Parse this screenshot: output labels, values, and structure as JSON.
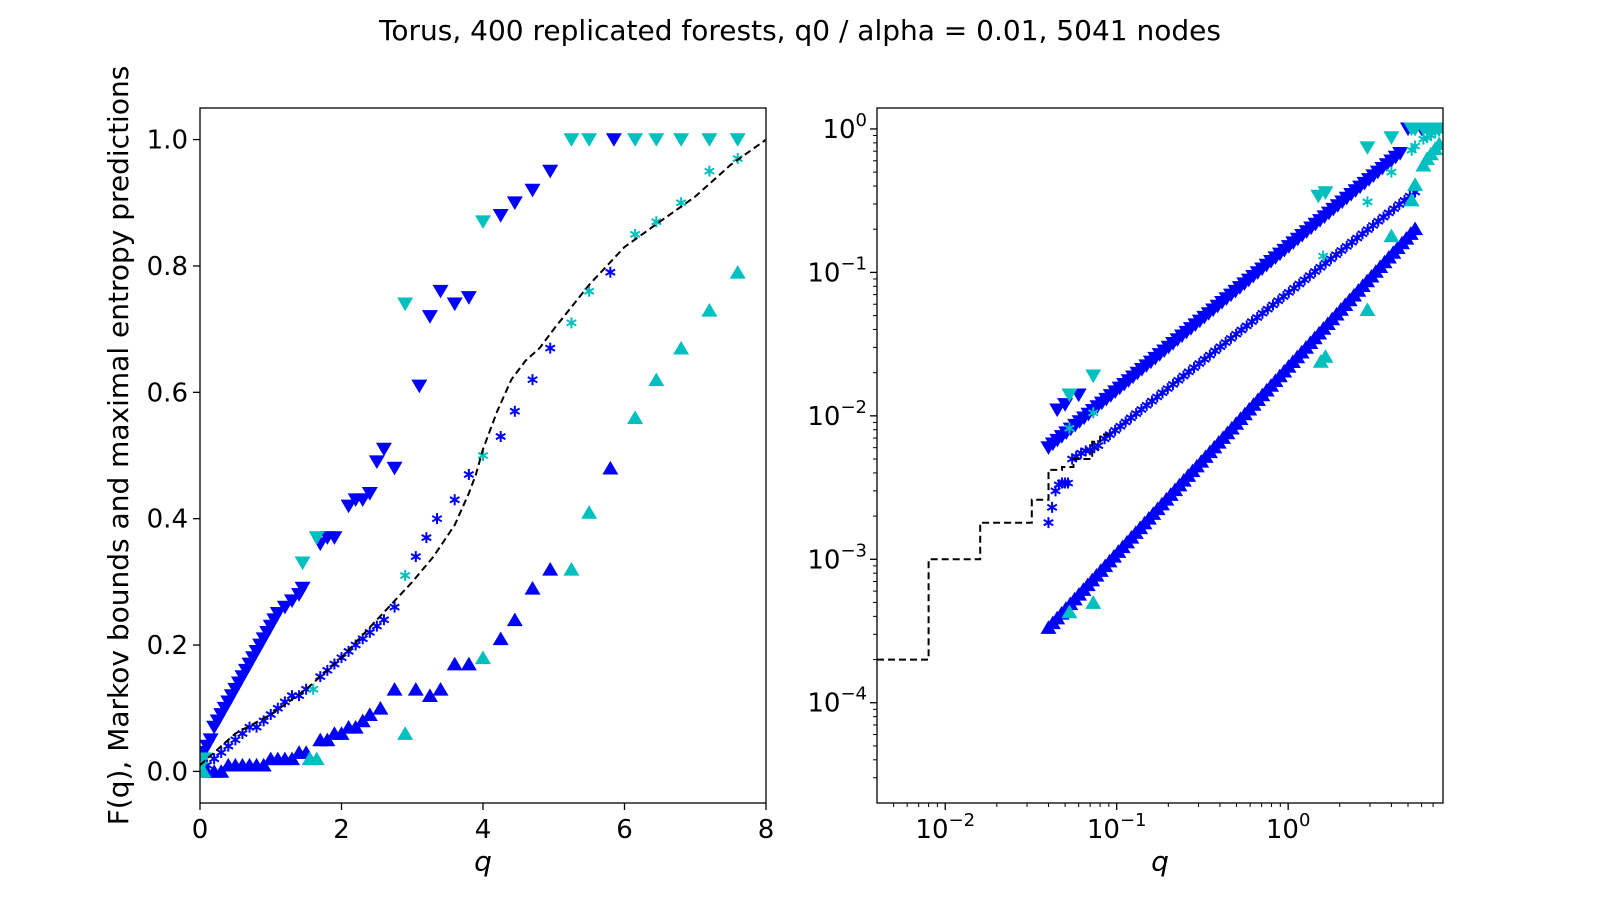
{
  "title": "Torus, 400 replicated forests, q0 / alpha = 0.01, 5041 nodes",
  "colors": {
    "blue": "#0000ff",
    "cyan": "#00bfbf",
    "dashed": "#000000"
  },
  "chart_data": [
    {
      "type": "scatter",
      "xscale": "linear",
      "yscale": "linear",
      "xlim": [
        0,
        8
      ],
      "ylim": [
        -0.05,
        1.05
      ],
      "xticks": [
        0,
        2,
        4,
        6,
        8
      ],
      "xtick_labels": [
        "0",
        "2",
        "4",
        "6",
        "8"
      ],
      "yticks": [
        0.0,
        0.2,
        0.4,
        0.6,
        0.8,
        1.0
      ],
      "ytick_labels": [
        "0.0",
        "0.2",
        "0.4",
        "0.6",
        "0.8",
        "1.0"
      ],
      "xlabel": "q",
      "ylabel": "F(q), Markov bounds and maximal entropy predictions",
      "series": [
        {
          "marker": "triangle-down",
          "color": "blue",
          "x": [
            0.05,
            0.1,
            0.15,
            0.2,
            0.25,
            0.3,
            0.35,
            0.4,
            0.45,
            0.5,
            0.55,
            0.6,
            0.65,
            0.7,
            0.75,
            0.8,
            0.85,
            0.9,
            0.95,
            1.0,
            1.05,
            1.1,
            1.2,
            1.3,
            1.4,
            1.45,
            1.7,
            1.8,
            1.9,
            2.1,
            2.2,
            2.3,
            2.4,
            2.5,
            2.6,
            2.75,
            3.1,
            3.25,
            3.4,
            3.6,
            3.8,
            4.25,
            4.45,
            4.7,
            4.95,
            5.85
          ],
          "y": [
            0.03,
            0.04,
            0.05,
            0.07,
            0.08,
            0.09,
            0.1,
            0.11,
            0.12,
            0.13,
            0.14,
            0.15,
            0.16,
            0.17,
            0.18,
            0.19,
            0.2,
            0.21,
            0.22,
            0.23,
            0.24,
            0.25,
            0.26,
            0.27,
            0.28,
            0.29,
            0.36,
            0.37,
            0.37,
            0.42,
            0.43,
            0.43,
            0.44,
            0.49,
            0.51,
            0.48,
            0.61,
            0.72,
            0.76,
            0.74,
            0.75,
            0.88,
            0.9,
            0.92,
            0.95,
            1.0
          ]
        },
        {
          "marker": "triangle-down",
          "color": "cyan",
          "x": [
            0.05,
            1.45,
            1.65,
            2.9,
            4.0,
            5.25,
            5.5,
            6.15,
            6.45,
            6.8,
            7.2,
            7.6
          ],
          "y": [
            0.02,
            0.33,
            0.37,
            0.74,
            0.87,
            1.0,
            1.0,
            1.0,
            1.0,
            1.0,
            1.0,
            1.0
          ]
        },
        {
          "marker": "asterisk",
          "color": "blue",
          "x": [
            0.1,
            0.2,
            0.3,
            0.4,
            0.5,
            0.6,
            0.7,
            0.8,
            0.9,
            1.0,
            1.1,
            1.2,
            1.3,
            1.4,
            1.5,
            1.7,
            1.8,
            1.9,
            2.0,
            2.1,
            2.2,
            2.3,
            2.4,
            2.5,
            2.6,
            2.75,
            3.05,
            3.2,
            3.35,
            3.6,
            3.8,
            4.25,
            4.45,
            4.7,
            4.95,
            5.8
          ],
          "y": [
            0.01,
            0.02,
            0.03,
            0.04,
            0.05,
            0.06,
            0.07,
            0.07,
            0.08,
            0.09,
            0.1,
            0.11,
            0.12,
            0.12,
            0.13,
            0.15,
            0.16,
            0.17,
            0.18,
            0.19,
            0.2,
            0.21,
            0.22,
            0.23,
            0.24,
            0.26,
            0.34,
            0.37,
            0.4,
            0.43,
            0.47,
            0.53,
            0.57,
            0.62,
            0.67,
            0.79
          ]
        },
        {
          "marker": "asterisk",
          "color": "cyan",
          "x": [
            0.05,
            1.6,
            2.9,
            4.0,
            5.25,
            5.5,
            6.15,
            6.45,
            6.8,
            7.2,
            7.6
          ],
          "y": [
            0.01,
            0.13,
            0.31,
            0.5,
            0.71,
            0.76,
            0.85,
            0.87,
            0.9,
            0.95,
            0.97
          ]
        },
        {
          "marker": "triangle-up",
          "color": "blue",
          "x": [
            0.1,
            0.2,
            0.3,
            0.4,
            0.5,
            0.6,
            0.7,
            0.8,
            0.9,
            1.0,
            1.1,
            1.2,
            1.3,
            1.4,
            1.5,
            1.7,
            1.8,
            1.9,
            2.0,
            2.1,
            2.2,
            2.3,
            2.4,
            2.55,
            2.75,
            3.05,
            3.25,
            3.4,
            3.6,
            3.8,
            4.25,
            4.45,
            4.7,
            4.95,
            5.8
          ],
          "y": [
            0.0,
            0.0,
            0.0,
            0.01,
            0.01,
            0.01,
            0.01,
            0.01,
            0.01,
            0.02,
            0.02,
            0.02,
            0.02,
            0.03,
            0.03,
            0.05,
            0.05,
            0.06,
            0.06,
            0.07,
            0.07,
            0.08,
            0.09,
            0.1,
            0.13,
            0.13,
            0.12,
            0.13,
            0.17,
            0.17,
            0.21,
            0.24,
            0.29,
            0.32,
            0.48
          ]
        },
        {
          "marker": "triangle-up",
          "color": "cyan",
          "x": [
            0.05,
            1.55,
            1.65,
            2.9,
            4.0,
            5.25,
            5.5,
            6.15,
            6.45,
            6.8,
            7.2,
            7.6
          ],
          "y": [
            0.0,
            0.02,
            0.02,
            0.06,
            0.18,
            0.32,
            0.41,
            0.56,
            0.62,
            0.67,
            0.73,
            0.79
          ]
        },
        {
          "marker": "dashed-line",
          "color": "dashed",
          "x": [
            0.0,
            0.5,
            1.0,
            1.5,
            2.0,
            2.5,
            3.0,
            3.3,
            3.6,
            3.8,
            3.9,
            4.0,
            4.2,
            4.4,
            4.6,
            4.8,
            5.0,
            5.5,
            6.0,
            6.5,
            7.0,
            7.5,
            8.0
          ],
          "y": [
            0.01,
            0.06,
            0.09,
            0.13,
            0.18,
            0.24,
            0.3,
            0.34,
            0.39,
            0.44,
            0.47,
            0.51,
            0.57,
            0.62,
            0.65,
            0.67,
            0.7,
            0.77,
            0.83,
            0.87,
            0.91,
            0.96,
            1.0
          ]
        }
      ]
    },
    {
      "type": "scatter",
      "xscale": "log",
      "yscale": "log",
      "xlim": [
        0.004,
        8
      ],
      "ylim": [
        2e-05,
        1.4
      ],
      "xticks": [
        0.01,
        0.1,
        1
      ],
      "xtick_labels": [
        [
          "10",
          "−2"
        ],
        [
          "10",
          "−1"
        ],
        [
          "10",
          "0"
        ]
      ],
      "yticks": [
        0.0001,
        0.001,
        0.01,
        0.1,
        1
      ],
      "ytick_labels": [
        [
          "10",
          "−4"
        ],
        [
          "10",
          "−3"
        ],
        [
          "10",
          "−2"
        ],
        [
          "10",
          "−1"
        ],
        [
          "10",
          "0"
        ]
      ],
      "xlabel": "q",
      "ylabel": "",
      "series": [
        {
          "marker": "triangle-down",
          "color": "blue",
          "power_fit": {
            "x_from": 0.04,
            "x_to": 4.5,
            "count": 80,
            "a": 0.15,
            "b": 1.0
          },
          "x": [
            0.045,
            0.05,
            0.06,
            5.0,
            5.5,
            6.0
          ],
          "y": [
            0.011,
            0.012,
            0.014,
            1.0,
            1.0,
            1.0
          ]
        },
        {
          "marker": "triangle-down",
          "color": "cyan",
          "x": [
            0.053,
            0.073,
            1.5,
            1.65,
            2.9,
            4.0,
            5.25,
            5.5,
            6.15,
            6.45,
            6.8,
            7.2,
            7.6
          ],
          "y": [
            0.014,
            0.019,
            0.34,
            0.36,
            0.74,
            0.87,
            1.0,
            1.0,
            1.0,
            1.0,
            1.0,
            1.0,
            1.0
          ]
        },
        {
          "marker": "asterisk",
          "color": "blue",
          "power_fit": {
            "x_from": 0.085,
            "x_to": 5.5,
            "count": 60,
            "a": 0.072,
            "b": 0.95
          },
          "x": [
            0.04,
            0.042,
            0.044,
            0.046,
            0.048,
            0.05,
            0.052,
            0.055,
            0.058,
            0.062,
            0.066,
            0.07,
            0.074,
            0.078
          ],
          "y": [
            0.0018,
            0.0023,
            0.003,
            0.0033,
            0.0034,
            0.0034,
            0.0034,
            0.005,
            0.0052,
            0.0055,
            0.0057,
            0.0058,
            0.006,
            0.0062
          ]
        },
        {
          "marker": "asterisk",
          "color": "cyan",
          "x": [
            0.053,
            0.073,
            1.6,
            2.9,
            4.0,
            5.25,
            5.5,
            6.15,
            6.45,
            6.8,
            7.2,
            7.6
          ],
          "y": [
            0.0082,
            0.0105,
            0.13,
            0.31,
            0.5,
            0.71,
            0.76,
            0.85,
            0.87,
            0.9,
            0.95,
            0.97
          ]
        },
        {
          "marker": "triangle-up",
          "color": "blue",
          "power_fit": {
            "x_from": 0.04,
            "x_to": 5.5,
            "count": 85,
            "a": 0.022,
            "b": 1.3
          },
          "x": [],
          "y": []
        },
        {
          "marker": "triangle-up",
          "color": "cyan",
          "x": [
            0.053,
            0.073,
            1.55,
            1.65,
            2.9,
            4.0,
            5.25,
            5.5,
            6.15,
            6.45,
            6.8,
            7.2,
            7.6
          ],
          "y": [
            0.00043,
            0.0005,
            0.024,
            0.026,
            0.055,
            0.18,
            0.32,
            0.41,
            0.56,
            0.62,
            0.67,
            0.73,
            0.79
          ]
        },
        {
          "marker": "step-line",
          "color": "dashed",
          "x": [
            0.004,
            0.008,
            0.008,
            0.016,
            0.016,
            0.032,
            0.032,
            0.04,
            0.04,
            0.048,
            0.048,
            0.056,
            0.056,
            0.072,
            0.072,
            0.08,
            0.08,
            0.09
          ],
          "y": [
            0.0002,
            0.0002,
            0.001,
            0.001,
            0.0018,
            0.0018,
            0.0026,
            0.0026,
            0.0042,
            0.0042,
            0.0044,
            0.0044,
            0.005,
            0.005,
            0.0066,
            0.0066,
            0.0074,
            0.0074
          ]
        }
      ]
    }
  ]
}
